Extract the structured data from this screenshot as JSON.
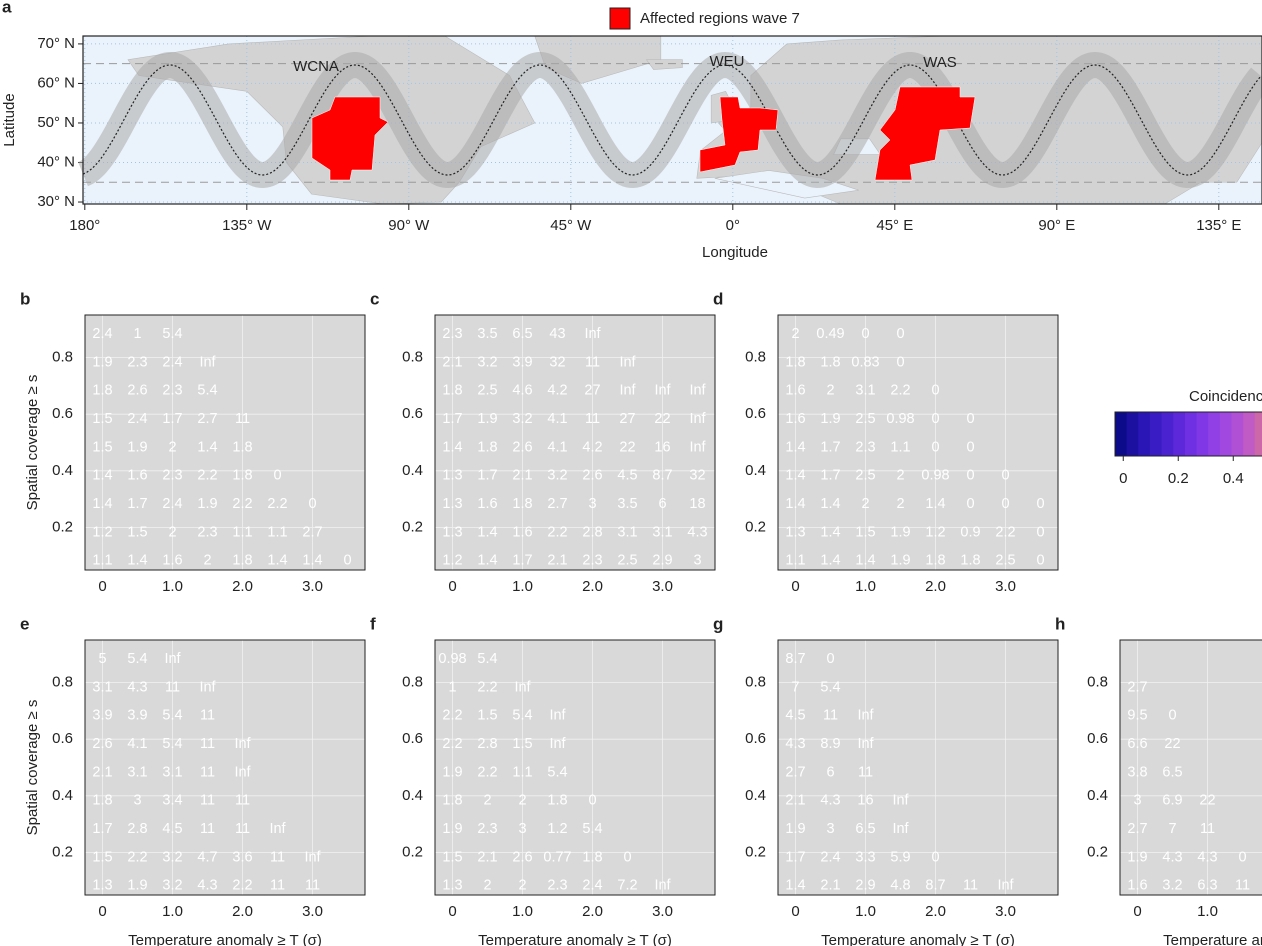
{
  "chart_data": [
    {
      "type": "map",
      "label": "a",
      "legend": "Affected regions wave 7",
      "xlabel": "Longitude",
      "ylabel": "Latitude",
      "xlim": [
        -180.5,
        147
      ],
      "ylim": [
        29.5,
        72
      ],
      "xticks": [
        {
          "value": -180,
          "label": "180°"
        },
        {
          "value": -135,
          "label": "135° W"
        },
        {
          "value": -90,
          "label": "90° W"
        },
        {
          "value": -45,
          "label": "45° W"
        },
        {
          "value": 0,
          "label": "0°"
        },
        {
          "value": 45,
          "label": "45° E"
        },
        {
          "value": 90,
          "label": "90° E"
        },
        {
          "value": 135,
          "label": "135° E"
        }
      ],
      "yticks": [
        {
          "value": 30,
          "label": "30° N"
        },
        {
          "value": 40,
          "label": "40° N"
        },
        {
          "value": 50,
          "label": "50° N"
        },
        {
          "value": 60,
          "label": "60° N"
        },
        {
          "value": 70,
          "label": "70° N"
        }
      ],
      "regions": [
        "WCNA",
        "WEU",
        "WAS"
      ],
      "region_color": "#ff0000"
    },
    {
      "type": "heatmap",
      "label": "b",
      "ylabel": "Spatial coverage ≥ s",
      "xlim": [
        -0.25,
        3.75
      ],
      "ylim": [
        0.05,
        0.95
      ],
      "xticks": [
        0,
        {
          "value": 1,
          "label": "1.0"
        },
        {
          "value": 2,
          "label": "2.0"
        },
        {
          "value": 3,
          "label": "3.0"
        }
      ],
      "yticks": [
        0.2,
        0.4,
        0.6,
        0.8
      ],
      "x": [
        0,
        0.5,
        1,
        1.5,
        2,
        2.5,
        3,
        3.5
      ],
      "y": [
        0.9,
        0.8,
        0.7,
        0.6,
        0.5,
        0.4,
        0.3,
        0.2,
        0.1
      ],
      "highlight": [
        1,
        3
      ],
      "values": [
        [
          2.4,
          1,
          5.4
        ],
        [
          1.9,
          2.3,
          2.4,
          "Inf"
        ],
        [
          1.8,
          2.6,
          2.3,
          5.4
        ],
        [
          1.5,
          2.4,
          1.7,
          2.7,
          11
        ],
        [
          1.5,
          1.9,
          2,
          1.4,
          1.8
        ],
        [
          1.4,
          1.6,
          2.3,
          2.2,
          1.8,
          0
        ],
        [
          1.4,
          1.7,
          2.4,
          1.9,
          2.2,
          2.2,
          0
        ],
        [
          1.2,
          1.5,
          2,
          2.3,
          1.1,
          1.1,
          2.7
        ],
        [
          1.1,
          1.4,
          1.6,
          2,
          1.8,
          1.4,
          1.4,
          0
        ]
      ]
    },
    {
      "type": "heatmap",
      "label": "c",
      "xlim": [
        -0.25,
        3.75
      ],
      "ylim": [
        0.05,
        0.95
      ],
      "xticks": [
        0,
        {
          "value": 1,
          "label": "1.0"
        },
        {
          "value": 2,
          "label": "2.0"
        },
        {
          "value": 3,
          "label": "3.0"
        }
      ],
      "yticks": [
        0.2,
        0.4,
        0.6,
        0.8
      ],
      "x": [
        0,
        0.5,
        1,
        1.5,
        2,
        2.5,
        3,
        3.5
      ],
      "y": [
        0.9,
        0.8,
        0.7,
        0.6,
        0.5,
        0.4,
        0.3,
        0.2,
        0.1
      ],
      "highlight": [
        2,
        5
      ],
      "values": [
        [
          2.3,
          3.5,
          6.5,
          43,
          "Inf"
        ],
        [
          2.1,
          3.2,
          3.9,
          32,
          11,
          "Inf"
        ],
        [
          1.8,
          2.5,
          4.6,
          4.2,
          27,
          "Inf",
          "Inf",
          "Inf"
        ],
        [
          1.7,
          1.9,
          3.2,
          4.1,
          11,
          27,
          22,
          "Inf"
        ],
        [
          1.4,
          1.8,
          2.6,
          4.1,
          4.2,
          22,
          16,
          "Inf"
        ],
        [
          1.3,
          1.7,
          2.1,
          3.2,
          2.6,
          4.5,
          8.7,
          32
        ],
        [
          1.3,
          1.6,
          1.8,
          2.7,
          3,
          3.5,
          6,
          18
        ],
        [
          1.3,
          1.4,
          1.6,
          2.2,
          2.8,
          3.1,
          3.1,
          4.3
        ],
        [
          1.2,
          1.4,
          1.7,
          2.1,
          2.3,
          2.5,
          2.9,
          3
        ]
      ]
    },
    {
      "type": "heatmap",
      "label": "d",
      "xlim": [
        -0.25,
        3.75
      ],
      "ylim": [
        0.05,
        0.95
      ],
      "xticks": [
        0,
        {
          "value": 1,
          "label": "1.0"
        },
        {
          "value": 2,
          "label": "2.0"
        },
        {
          "value": 3,
          "label": "3.0"
        }
      ],
      "yticks": [
        0.2,
        0.4,
        0.6,
        0.8
      ],
      "x": [
        0,
        0.5,
        1,
        1.5,
        2,
        2.5,
        3,
        3.5
      ],
      "y": [
        0.9,
        0.8,
        0.7,
        0.6,
        0.5,
        0.4,
        0.3,
        0.2,
        0.1
      ],
      "highlight": [
        2,
        2
      ],
      "values": [
        [
          2,
          0.49,
          0,
          0
        ],
        [
          1.8,
          1.8,
          0.83,
          0
        ],
        [
          1.6,
          2,
          3.1,
          2.2,
          0
        ],
        [
          1.6,
          1.9,
          2.5,
          0.98,
          0,
          0
        ],
        [
          1.4,
          1.7,
          2.3,
          1.1,
          0,
          0
        ],
        [
          1.4,
          1.7,
          2.5,
          2,
          0.98,
          0,
          0
        ],
        [
          1.4,
          1.4,
          2,
          2,
          1.4,
          0,
          0,
          0
        ],
        [
          1.3,
          1.4,
          1.5,
          1.9,
          1.2,
          0.9,
          2.2,
          0
        ],
        [
          1.1,
          1.4,
          1.4,
          1.9,
          1.8,
          1.8,
          2.5,
          0
        ]
      ]
    },
    {
      "type": "heatmap",
      "label": "e",
      "ylabel": "Spatial coverage ≥ s",
      "xlabel": "Temperature anomaly ≥ T (σ)",
      "xlim": [
        -0.25,
        3.75
      ],
      "ylim": [
        0.05,
        0.95
      ],
      "xticks": [
        0,
        {
          "value": 1,
          "label": "1.0"
        },
        {
          "value": 2,
          "label": "2.0"
        },
        {
          "value": 3,
          "label": "3.0"
        }
      ],
      "yticks": [
        0.2,
        0.4,
        0.6,
        0.8
      ],
      "x": [
        0,
        0.5,
        1,
        1.5,
        2,
        2.5,
        3,
        3.5
      ],
      "y": [
        0.9,
        0.8,
        0.7,
        0.6,
        0.5,
        0.4,
        0.3,
        0.2,
        0.1
      ],
      "highlight": [
        5,
        2
      ],
      "values": [
        [
          5,
          5.4,
          "Inf"
        ],
        [
          3.1,
          4.3,
          11,
          "Inf"
        ],
        [
          3.9,
          3.9,
          5.4,
          11
        ],
        [
          2.6,
          4.1,
          5.4,
          11,
          "Inf"
        ],
        [
          2.1,
          3.1,
          3.1,
          11,
          "Inf"
        ],
        [
          1.8,
          3,
          3.4,
          11,
          11
        ],
        [
          1.7,
          2.8,
          4.5,
          11,
          11,
          "Inf"
        ],
        [
          1.5,
          2.2,
          3.2,
          4.7,
          3.6,
          11,
          "Inf"
        ],
        [
          1.3,
          1.9,
          3.2,
          4.3,
          2.2,
          11,
          11
        ]
      ]
    },
    {
      "type": "heatmap",
      "label": "f",
      "xlabel": "Temperature anomaly ≥ T (σ)",
      "xlim": [
        -0.25,
        3.75
      ],
      "ylim": [
        0.05,
        0.95
      ],
      "xticks": [
        0,
        {
          "value": 1,
          "label": "1.0"
        },
        {
          "value": 2,
          "label": "2.0"
        },
        {
          "value": 3,
          "label": "3.0"
        }
      ],
      "yticks": [
        0.2,
        0.4,
        0.6,
        0.8
      ],
      "x": [
        0,
        0.5,
        1,
        1.5,
        2,
        2.5,
        3,
        3.5
      ],
      "y": [
        0.9,
        0.8,
        0.7,
        0.6,
        0.5,
        0.4,
        0.3,
        0.2,
        0.1
      ],
      "highlight": [
        5,
        2
      ],
      "values": [
        [
          0.98,
          5.4
        ],
        [
          1,
          2.2,
          "Inf"
        ],
        [
          2.2,
          1.5,
          5.4,
          "Inf"
        ],
        [
          2.2,
          2.8,
          1.5,
          "Inf"
        ],
        [
          1.9,
          2.2,
          1.1,
          5.4
        ],
        [
          1.8,
          2,
          2,
          1.8,
          0
        ],
        [
          1.9,
          2.3,
          3,
          1.2,
          5.4
        ],
        [
          1.5,
          2.1,
          2.6,
          0.77,
          1.8,
          0
        ],
        [
          1.3,
          2,
          2,
          2.3,
          2.4,
          7.2,
          "Inf"
        ]
      ]
    },
    {
      "type": "heatmap",
      "label": "g",
      "xlabel": "Temperature anomaly ≥ T (σ)",
      "xlim": [
        -0.25,
        3.75
      ],
      "ylim": [
        0.05,
        0.95
      ],
      "xticks": [
        0,
        {
          "value": 1,
          "label": "1.0"
        },
        {
          "value": 2,
          "label": "2.0"
        },
        {
          "value": 3,
          "label": "3.0"
        }
      ],
      "yticks": [
        0.2,
        0.4,
        0.6,
        0.8
      ],
      "x": [
        0,
        0.5,
        1,
        1.5,
        2,
        2.5,
        3,
        3.5
      ],
      "y": [
        0.9,
        0.8,
        0.7,
        0.6,
        0.5,
        0.4,
        0.3,
        0.2,
        0.1
      ],
      "highlight": [
        5,
        2
      ],
      "values": [
        [
          8.7,
          0
        ],
        [
          7,
          5.4
        ],
        [
          4.5,
          11,
          "Inf"
        ],
        [
          4.3,
          8.9,
          "Inf"
        ],
        [
          2.7,
          6,
          11
        ],
        [
          2.1,
          4.3,
          16,
          "Inf"
        ],
        [
          1.9,
          3,
          6.5,
          "Inf"
        ],
        [
          1.7,
          2.4,
          3.3,
          5.9,
          0
        ],
        [
          1.4,
          2.1,
          2.9,
          4.8,
          8.7,
          11,
          "Inf"
        ]
      ]
    },
    {
      "type": "heatmap",
      "label": "h",
      "xlabel": "Temperature anomaly ≥ T (σ)",
      "xlim": [
        -0.25,
        3.75
      ],
      "ylim": [
        0.05,
        0.95
      ],
      "xticks": [
        0,
        {
          "value": 1,
          "label": "1.0"
        }
      ],
      "yticks": [
        0.2,
        0.4,
        0.6,
        0.8
      ],
      "x": [
        0,
        0.5,
        1,
        1.5,
        2,
        2.5,
        3,
        3.5
      ],
      "y": [
        0.9,
        0.8,
        0.7,
        0.6,
        0.5,
        0.4,
        0.3,
        0.2,
        0.1
      ],
      "highlight": [
        5,
        2
      ],
      "values": [
        [],
        [
          2.7
        ],
        [
          9.5,
          0
        ],
        [
          6.6,
          22
        ],
        [
          3.8,
          6.5
        ],
        [
          3,
          6.9,
          22
        ],
        [
          2.7,
          7,
          11
        ],
        [
          1.9,
          4.3,
          4.3,
          0
        ],
        [
          1.6,
          3.2,
          6.3,
          11
        ]
      ]
    }
  ],
  "colorbar": {
    "title": "Coincidence probability",
    "lim": [
      -0.03,
      0.69
    ],
    "ticks": [
      0,
      0.2,
      0.4
    ]
  }
}
